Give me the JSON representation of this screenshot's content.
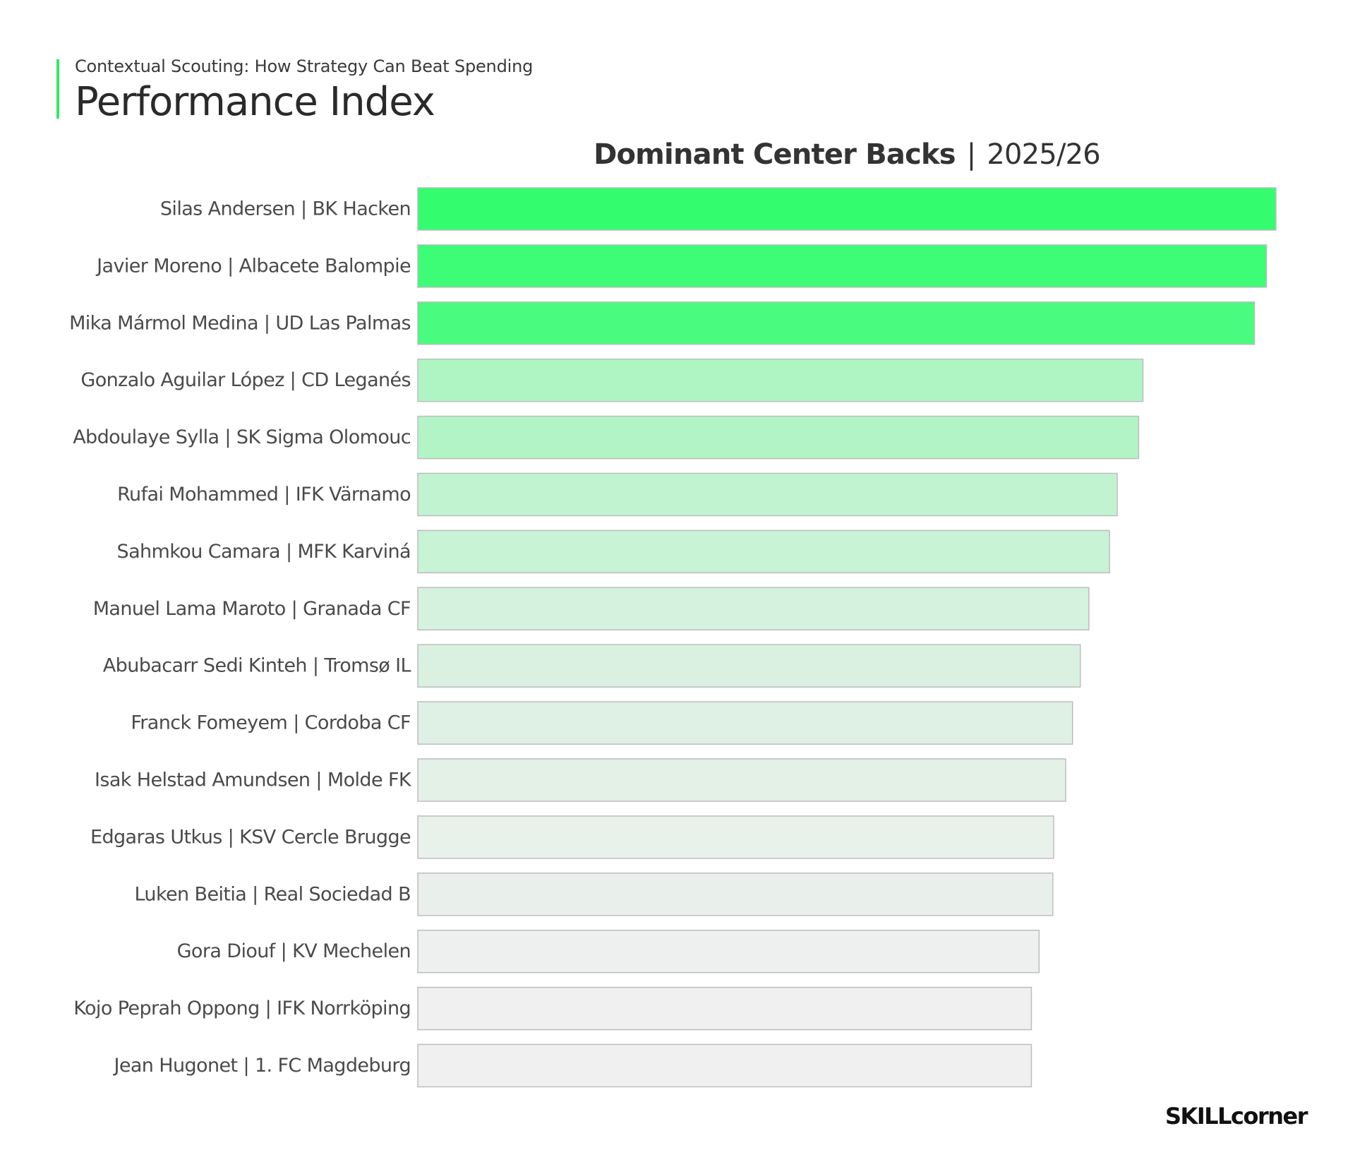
{
  "header": {
    "supertitle": "Contextual Scouting: How Strategy Can Beat Spending",
    "title": "Performance Index",
    "accent_color": "#33e86b"
  },
  "chart_title": {
    "bold": "Dominant Center Backs",
    "separator": "|",
    "season": "2025/26"
  },
  "logo": {
    "text": "SKILLcorner"
  },
  "chart_data": {
    "type": "bar",
    "orientation": "horizontal",
    "title": "Dominant Center Backs | 2025/26",
    "xlabel": "",
    "ylabel": "",
    "xlim": [
      0,
      100
    ],
    "axes_visible": false,
    "grid": false,
    "colors": {
      "high": "#33fd6f",
      "low": "#f0f0f0",
      "bar_outline": "#bdbdbd"
    },
    "categories": [
      "Silas Andersen | BK Hacken",
      "Javier Moreno | Albacete Balompie",
      "Mika Mármol Medina | UD Las Palmas",
      "Gonzalo Aguilar López | CD Leganés",
      "Abdoulaye Sylla | SK Sigma Olomouc",
      "Rufai Mohammed | IFK Värnamo",
      "Sahmkou Camara | MFK Karviná",
      "Manuel Lama Maroto | Granada CF",
      "Abubacarr Sedi Kinteh | Tromsø IL",
      "Franck Fomeyem | Cordoba CF",
      "Isak Helstad Amundsen | Molde FK",
      "Edgaras Utkus | KSV Cercle Brugge",
      "Luken Beitia | Real Sociedad B",
      "Gora Diouf | KV Mechelen",
      "Kojo Peprah  Oppong | IFK Norrköping",
      "Jean Hugonet | 1. FC Magdeburg"
    ],
    "values": [
      100,
      98.9,
      97.5,
      84.5,
      84.0,
      81.5,
      80.6,
      78.2,
      77.2,
      76.3,
      75.5,
      74.1,
      74.0,
      72.4,
      71.5,
      71.5
    ]
  }
}
